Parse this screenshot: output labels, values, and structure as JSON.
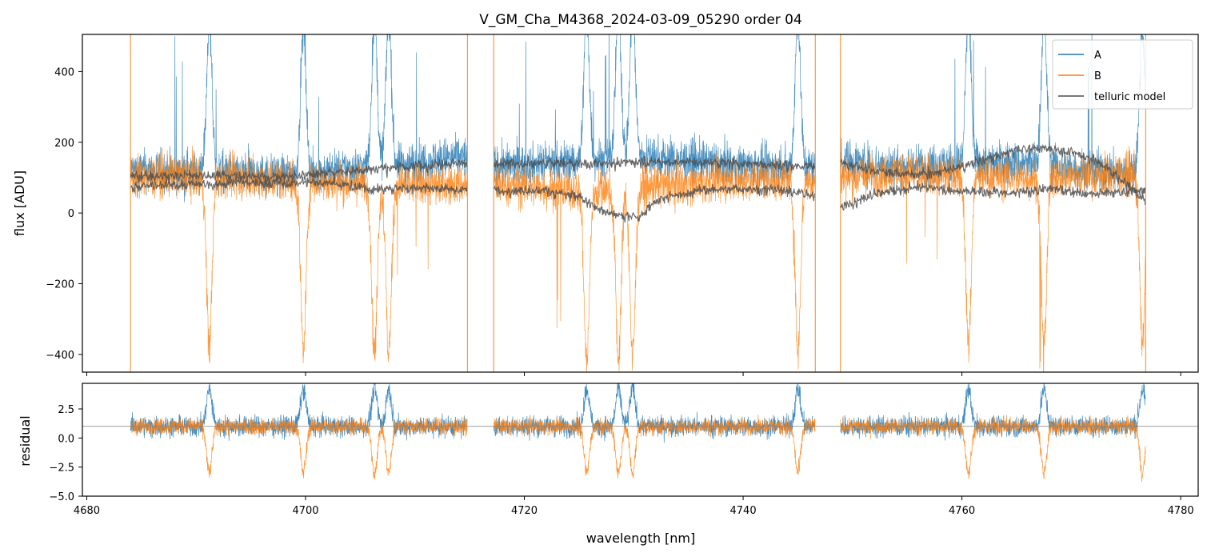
{
  "chart_data": [
    {
      "type": "line",
      "panel": "spectrum",
      "title": "V_GM_Cha_M4368_2024-03-09_05290  order 04",
      "xlabel": "",
      "ylabel": "flux [ADU]",
      "xlim": [
        4679.6,
        4781.6
      ],
      "ylim": [
        -450,
        505
      ],
      "yticks": [
        -400,
        -200,
        0,
        200,
        400
      ],
      "ytick_labels": [
        "−400",
        "−200",
        "0",
        "200",
        "400"
      ],
      "legend_position": "top-right",
      "segments": [
        [
          4684.0,
          4714.8
        ],
        [
          4717.2,
          4746.6
        ],
        [
          4748.9,
          4776.8
        ]
      ],
      "series": [
        {
          "name": "A",
          "color": "#1f77b4",
          "base": [
            [
              4684,
              120
            ],
            [
              4690,
              115
            ],
            [
              4696,
              110
            ],
            [
              4700,
              110
            ],
            [
              4704,
              125
            ],
            [
              4708,
              135
            ],
            [
              4712,
              150
            ],
            [
              4714.8,
              160
            ],
            [
              4717.2,
              130
            ],
            [
              4722,
              140
            ],
            [
              4726,
              150
            ],
            [
              4730,
              160
            ],
            [
              4734,
              150
            ],
            [
              4738,
              140
            ],
            [
              4742,
              130
            ],
            [
              4746.6,
              130
            ],
            [
              4748.9,
              150
            ],
            [
              4754,
              130
            ],
            [
              4760,
              140
            ],
            [
              4766,
              140
            ],
            [
              4772,
              120
            ],
            [
              4776.8,
              110
            ]
          ]
        },
        {
          "name": "B",
          "color": "#ff7f0e",
          "base": [
            [
              4684,
              100
            ],
            [
              4690,
              105
            ],
            [
              4696,
              95
            ],
            [
              4700,
              90
            ],
            [
              4704,
              85
            ],
            [
              4708,
              80
            ],
            [
              4712,
              80
            ],
            [
              4714.8,
              80
            ],
            [
              4717.2,
              80
            ],
            [
              4722,
              70
            ],
            [
              4726,
              60
            ],
            [
              4730,
              70
            ],
            [
              4734,
              80
            ],
            [
              4738,
              90
            ],
            [
              4742,
              95
            ],
            [
              4746.6,
              90
            ],
            [
              4748.9,
              100
            ],
            [
              4754,
              110
            ],
            [
              4760,
              105
            ],
            [
              4766,
              100
            ],
            [
              4772,
              105
            ],
            [
              4776.8,
              110
            ]
          ]
        },
        {
          "name": "telluric model",
          "color": "#4d4d4d",
          "lines": [
            [
              [
                4684.0,
                110
              ],
              [
                4690,
                113
              ],
              [
                4694,
                112
              ],
              [
                4698,
                108
              ],
              [
                4702,
                120
              ],
              [
                4706,
                130
              ],
              [
                4710,
                140
              ],
              [
                4714.8,
                150
              ]
            ],
            [
              [
                4684.0,
                80
              ],
              [
                4690,
                88
              ],
              [
                4694,
                92
              ],
              [
                4698,
                90
              ],
              [
                4702,
                95
              ],
              [
                4706,
                72
              ],
              [
                4710,
                78
              ],
              [
                4714.8,
                70
              ]
            ],
            [
              [
                4717.2,
                145
              ],
              [
                4722,
                148
              ],
              [
                4726,
                145
              ],
              [
                4730,
                150
              ],
              [
                4734,
                150
              ],
              [
                4738,
                148
              ],
              [
                4742,
                142
              ],
              [
                4746.6,
                140
              ]
            ],
            [
              [
                4717.2,
                70
              ],
              [
                4722,
                70
              ],
              [
                4725,
                50
              ],
              [
                4728,
                0
              ],
              [
                4730.5,
                -5
              ],
              [
                4732,
                40
              ],
              [
                4736,
                70
              ],
              [
                4740,
                75
              ],
              [
                4744,
                70
              ],
              [
                4746.6,
                55
              ]
            ],
            [
              [
                4748.9,
                150
              ],
              [
                4752,
                125
              ],
              [
                4755,
                115
              ],
              [
                4758,
                120
              ],
              [
                4762,
                155
              ],
              [
                4765,
                185
              ],
              [
                4767,
                190
              ],
              [
                4770,
                180
              ],
              [
                4773,
                140
              ],
              [
                4775,
                90
              ],
              [
                4776.8,
                40
              ]
            ],
            [
              [
                4748.9,
                20
              ],
              [
                4752,
                60
              ],
              [
                4756,
                80
              ],
              [
                4760,
                70
              ],
              [
                4764,
                60
              ],
              [
                4768,
                75
              ],
              [
                4772,
                60
              ],
              [
                4776.8,
                70
              ]
            ]
          ]
        }
      ],
      "features": [
        4691.2,
        4699.8,
        4706.3,
        4707.6,
        4725.7,
        4728.6,
        4729.9,
        4745.0,
        4760.6,
        4767.5,
        4776.5
      ]
    },
    {
      "type": "line",
      "panel": "residual",
      "title": "",
      "xlabel": "wavelength [nm]",
      "ylabel": "residual",
      "xlim": [
        4679.6,
        4781.6
      ],
      "ylim": [
        -5.0,
        4.7
      ],
      "xticks": [
        4680,
        4700,
        4720,
        4740,
        4760,
        4780
      ],
      "xtick_labels": [
        "4680",
        "4700",
        "4720",
        "4740",
        "4760",
        "4780"
      ],
      "yticks": [
        -5.0,
        -2.5,
        0.0,
        2.5
      ],
      "ytick_labels": [
        "−5.0",
        "−2.5",
        "0.0",
        "2.5"
      ],
      "reference_line": 1.0,
      "series": [
        {
          "name": "A",
          "color": "#1f77b4"
        },
        {
          "name": "B",
          "color": "#ff7f0e"
        }
      ]
    }
  ],
  "legend": [
    {
      "label": "A",
      "color": "#1f77b4"
    },
    {
      "label": "B",
      "color": "#ff7f0e"
    },
    {
      "label": "telluric model",
      "color": "#4d4d4d"
    }
  ]
}
